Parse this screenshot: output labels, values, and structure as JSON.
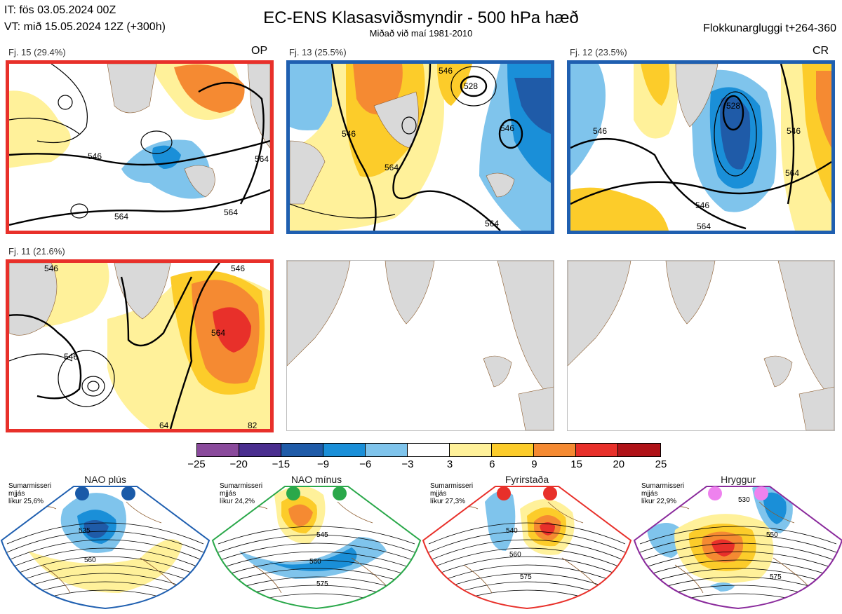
{
  "header": {
    "it_line": "IT: fös 03.05.2024 00Z",
    "vt_line": "VT: mið 15.05.2024 12Z  (+300h)",
    "title": "EC-ENS Klasasviðsmyndir - 500 hPa hæð",
    "subtitle": "Miðað við maí 1981-2010",
    "window": "Flokkunargluggi t+264-360"
  },
  "panels": [
    {
      "label": "Fj. 15 (29.4%)",
      "tag": "OP",
      "border_color": "#e8302a",
      "contours": [
        "546",
        "564",
        "564",
        "564"
      ]
    },
    {
      "label": "Fj. 13 (25.5%)",
      "tag": "",
      "border_color": "#1f5fb0",
      "contours": [
        "546",
        "564",
        "564",
        "528",
        "546",
        "546"
      ]
    },
    {
      "label": "Fj. 12 (23.5%)",
      "tag": "CR",
      "border_color": "#1f5fb0",
      "contours": [
        "546",
        "528",
        "546",
        "564",
        "564",
        "546"
      ]
    },
    {
      "label": "Fj. 11 (21.6%)",
      "tag": "",
      "border_color": "#e8302a",
      "contours": [
        "546",
        "546",
        "546",
        "564",
        "64",
        "82"
      ]
    },
    {
      "label": "",
      "tag": "",
      "border_color": "",
      "contours": []
    },
    {
      "label": "",
      "tag": "",
      "border_color": "",
      "contours": []
    }
  ],
  "colorbar": {
    "ticks": [
      "−25",
      "−20",
      "−15",
      "−9",
      "−6",
      "−3",
      "3",
      "6",
      "9",
      "15",
      "20",
      "25"
    ],
    "colors": [
      "#8a4a9c",
      "#4a2e8f",
      "#1f5ba8",
      "#1a8fd8",
      "#7fc4ec",
      "#ffffff",
      "#fff19a",
      "#fccc2a",
      "#f58a32",
      "#e8302a",
      "#b01218"
    ]
  },
  "regimes": [
    {
      "title": "NAO plús",
      "season": "Sumarmisseri",
      "smooth": "mjjás",
      "prob": "líkur 25,6%",
      "border_color": "#1f5fb0",
      "dot_color": "#1a5aa8",
      "contours": [
        "535",
        "560"
      ]
    },
    {
      "title": "NAO mínus",
      "season": "Sumarmisseri",
      "smooth": "mjjás",
      "prob": "líkur 24,2%",
      "border_color": "#2aa84a",
      "dot_color": "#2aa84a",
      "contours": [
        "545",
        "560",
        "575"
      ]
    },
    {
      "title": "Fyrirstaða",
      "season": "Sumarmisseri",
      "smooth": "mjjás",
      "prob": "líkur 27,3%",
      "border_color": "#e8302a",
      "dot_color": "#e8302a",
      "contours": [
        "540",
        "560",
        "575"
      ]
    },
    {
      "title": "Hryggur",
      "season": "Sumarmisseri",
      "smooth": "mjjás",
      "prob": "líkur 22,9%",
      "border_color": "#8a2a9c",
      "dot_color": "#ee82ee",
      "contours": [
        "530",
        "550",
        "575"
      ]
    }
  ],
  "chart_data": {
    "type": "heatmap",
    "title": "EC-ENS Klasasviðsmyndir - 500 hPa hæð",
    "subtitle": "Miðað við maí 1981-2010",
    "colorbar_levels": [
      -25,
      -20,
      -15,
      -9,
      -6,
      -3,
      3,
      6,
      9,
      15,
      20,
      25
    ],
    "clusters": [
      {
        "name": "Fj. 15",
        "percent": 29.4
      },
      {
        "name": "Fj. 13",
        "percent": 25.5
      },
      {
        "name": "Fj. 12",
        "percent": 23.5
      },
      {
        "name": "Fj. 11",
        "percent": 21.6
      }
    ],
    "regimes": [
      {
        "name": "NAO plús",
        "likelihood": 25.6
      },
      {
        "name": "NAO mínus",
        "likelihood": 24.2
      },
      {
        "name": "Fyrirstaða",
        "likelihood": 27.3
      },
      {
        "name": "Hryggur",
        "likelihood": 22.9
      }
    ]
  }
}
